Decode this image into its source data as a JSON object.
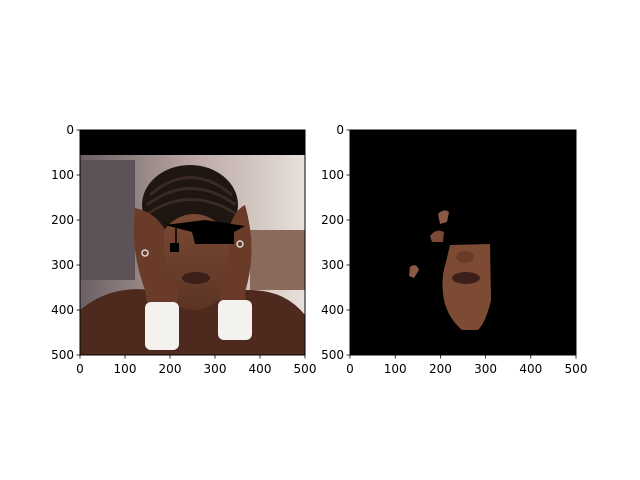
{
  "chart_data": [
    {
      "type": "image",
      "title": "",
      "xlabel": "",
      "ylabel": "",
      "xlim": [
        0,
        500
      ],
      "ylim": [
        500,
        0
      ],
      "xticks": [
        0,
        100,
        200,
        300,
        400,
        500
      ],
      "yticks": [
        0,
        100,
        200,
        300,
        400,
        500
      ],
      "xtick_labels": [
        "0",
        "100",
        "200",
        "300",
        "400",
        "500"
      ],
      "ytick_labels": [
        "0",
        "100",
        "200",
        "300",
        "400",
        "500"
      ],
      "grid": false,
      "content": "photo of a woman with braided hair resting her face in both hands, wristbands on wrists; black band across top rows; black graduation-cap shape drawn over the eyes",
      "colors": {
        "background_band": "#000000",
        "overlay": "#000000"
      }
    },
    {
      "type": "image",
      "title": "",
      "xlabel": "",
      "ylabel": "",
      "xlim": [
        0,
        500
      ],
      "ylim": [
        500,
        0
      ],
      "xticks": [
        0,
        100,
        200,
        300,
        400,
        500
      ],
      "yticks": [
        0,
        100,
        200,
        300,
        400,
        500
      ],
      "xtick_labels": [
        "0",
        "100",
        "200",
        "300",
        "400",
        "500"
      ],
      "ytick_labels": [
        "0",
        "100",
        "200",
        "300",
        "400",
        "500"
      ],
      "grid": false,
      "content": "segmentation mask on black background showing only the visible skin regions of the face (nose, lips, chin, cheek fragments)",
      "colors": {
        "background": "#000000",
        "skin": "#8a5a44"
      }
    }
  ]
}
